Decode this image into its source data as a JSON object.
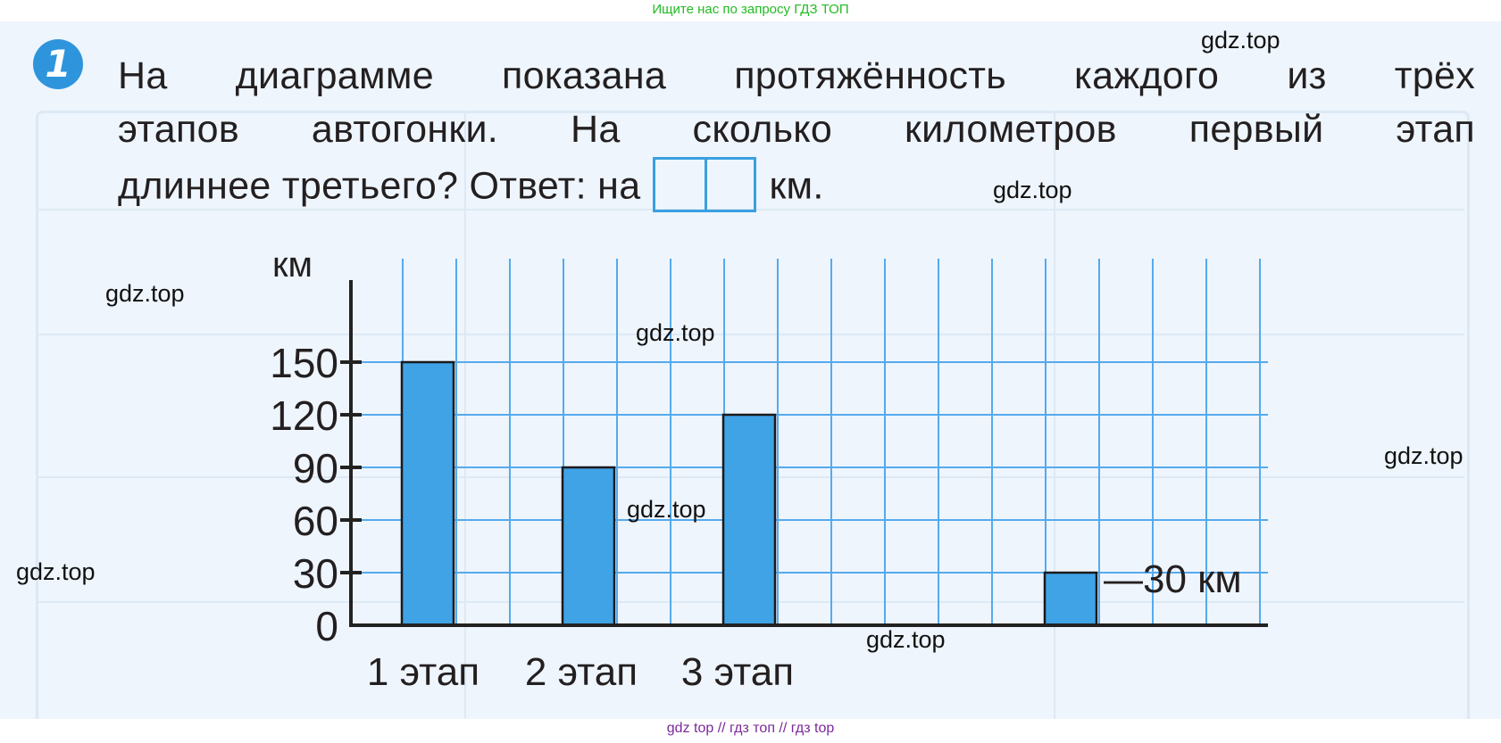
{
  "header_note": "Ищите нас по запросу ГДЗ ТОП",
  "task_number": "1",
  "question": {
    "line1": "На диаграмме показана протяжённость каждого из трёх",
    "line2": "этапов автогонки. На сколько километров первый этап",
    "line3_before": "длиннее третьего? Ответ: на",
    "line3_after": "км."
  },
  "watermark": "gdz.top",
  "chart_data": {
    "type": "bar",
    "categories": [
      "1 этап",
      "2 этап",
      "3 этап",
      ""
    ],
    "values": [
      150,
      90,
      120,
      30
    ],
    "ylabel": "км",
    "yticks": [
      0,
      30,
      60,
      90,
      120,
      150
    ],
    "ylim": [
      0,
      180
    ],
    "grid": true,
    "annotation": "—30 км",
    "bar_color": "#3fa3e6",
    "grid_color": "#55aaee"
  },
  "footer": "gdz top  //  гдз топ  //  гдз top"
}
